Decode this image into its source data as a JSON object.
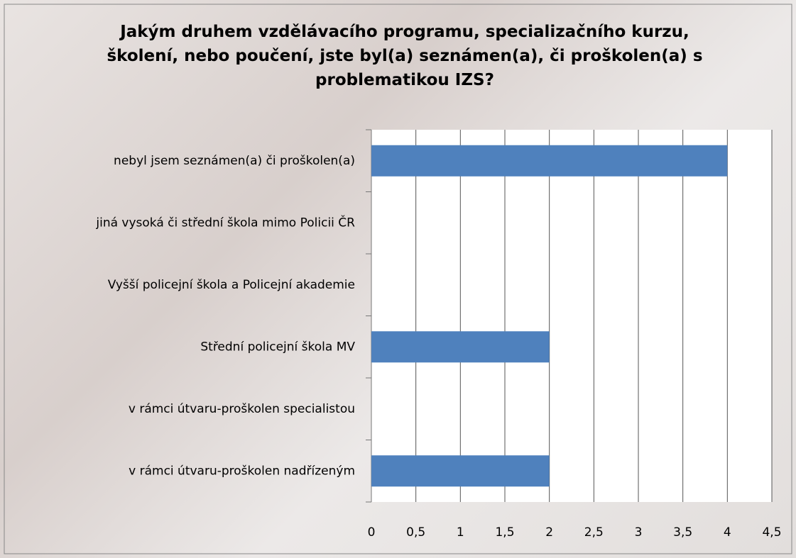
{
  "chart_data": {
    "type": "bar",
    "orientation": "horizontal",
    "title": "Jakým druhem vzdělávacího programu, specializačního kurzu, školení, nebo poučení, jste byl(a) seznámen(a), či proškolen(a) s problematikou IZS?",
    "categories": [
      "nebyl jsem seznámen(a) či proškolen(a)",
      "jiná vysoká či střední škola mimo Policii ČR",
      "Vyšší policejní škola a Policejní akademie",
      "Střední policejní škola MV",
      "v rámci útvaru-proškolen specialistou",
      "v rámci útvaru-proškolen nadřízeným"
    ],
    "values": [
      4,
      0,
      0,
      2,
      0,
      2
    ],
    "color": "#4f81bd",
    "xlim": [
      0,
      4.5
    ],
    "xticks": [
      0,
      {
        "value": 0.5,
        "label": "0,5"
      },
      1,
      {
        "value": 1.5,
        "label": "1,5"
      },
      2,
      {
        "value": 2.5,
        "label": "2,5"
      },
      3,
      {
        "value": 3.5,
        "label": "3,5"
      },
      4,
      {
        "value": 4.5,
        "label": "4,5"
      }
    ],
    "grid": true
  }
}
